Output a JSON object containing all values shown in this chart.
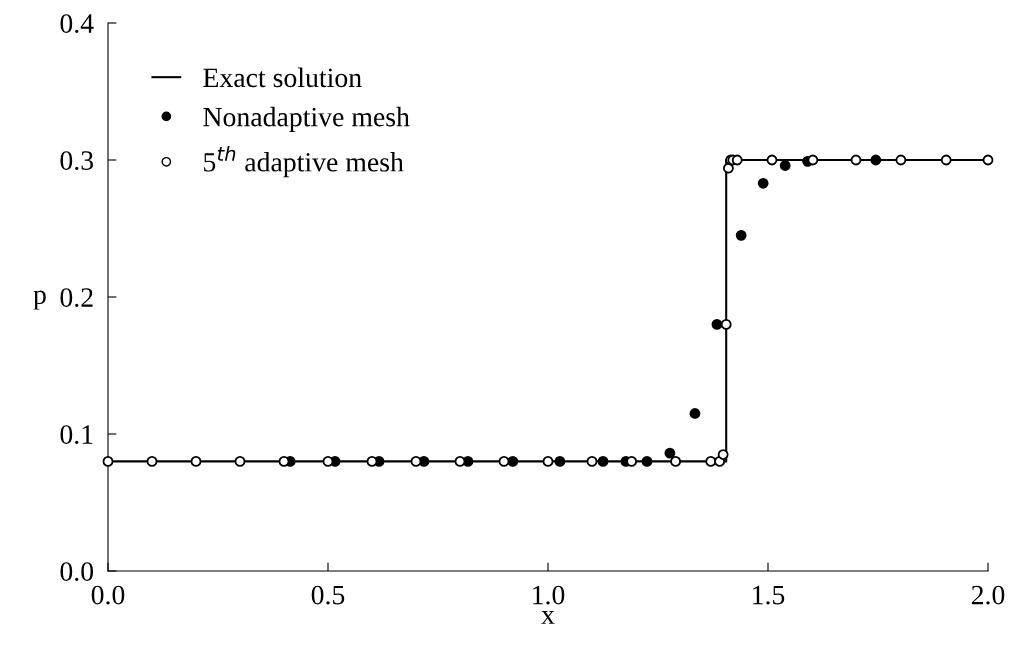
{
  "chart_data": {
    "type": "scatter",
    "xlabel": "x",
    "ylabel": "p",
    "xlim": [
      0,
      2
    ],
    "ylim": [
      0,
      0.4
    ],
    "xticks": [
      {
        "value": 0,
        "label": "0.0"
      },
      {
        "value": 0.5,
        "label": "0.5"
      },
      {
        "value": 1,
        "label": "1.0"
      },
      {
        "value": 1.5,
        "label": "1.5"
      },
      {
        "value": 2,
        "label": "2.0"
      }
    ],
    "yticks": [
      {
        "value": 0,
        "label": "0.0"
      },
      {
        "value": 0.1,
        "label": "0.1"
      },
      {
        "value": 0.2,
        "label": "0.2"
      },
      {
        "value": 0.3,
        "label": "0.3"
      },
      {
        "value": 0.4,
        "label": "0.4"
      }
    ],
    "grid": false,
    "legend": "top left",
    "series": [
      {
        "name": "Exact solution",
        "type": "line",
        "color": "#000000",
        "marker": "none",
        "line_style": "solid",
        "x": [
          0,
          1.405,
          1.405,
          2
        ],
        "values": [
          0.08,
          0.08,
          0.3,
          0.3
        ]
      },
      {
        "name": "Nonadaptive mesh",
        "color": "#000000",
        "marker": "circle",
        "x": [
          0.414,
          0.516,
          0.616,
          0.718,
          0.818,
          0.92,
          1.027,
          1.125,
          1.177,
          1.225,
          1.277,
          1.334,
          1.384,
          1.439,
          1.489,
          1.539,
          1.59,
          1.745
        ],
        "values": [
          0.08,
          0.08,
          0.08,
          0.08,
          0.08,
          0.08,
          0.08,
          0.08,
          0.08,
          0.08,
          0.086,
          0.115,
          0.18,
          0.245,
          0.283,
          0.296,
          0.299,
          0.3
        ]
      },
      {
        "name": "5$^{th}$ adaptive mesh",
        "color": "#ffffff",
        "marker": "circle",
        "x": [
          0,
          0.1,
          0.2,
          0.3,
          0.4,
          0.5,
          0.6,
          0.7,
          0.8,
          0.9,
          1.0,
          1.1,
          1.19,
          1.29,
          1.37,
          1.39,
          1.398,
          1.405,
          1.41,
          1.415,
          1.42,
          1.43,
          1.509,
          1.602,
          1.7,
          1.802,
          1.905,
          2.0
        ],
        "values": [
          0.08,
          0.08,
          0.08,
          0.08,
          0.08,
          0.08,
          0.08,
          0.08,
          0.08,
          0.08,
          0.08,
          0.08,
          0.08,
          0.08,
          0.08,
          0.08,
          0.085,
          0.18,
          0.294,
          0.3,
          0.3,
          0.3,
          0.3,
          0.3,
          0.3,
          0.3,
          0.3,
          0.3
        ]
      }
    ]
  }
}
